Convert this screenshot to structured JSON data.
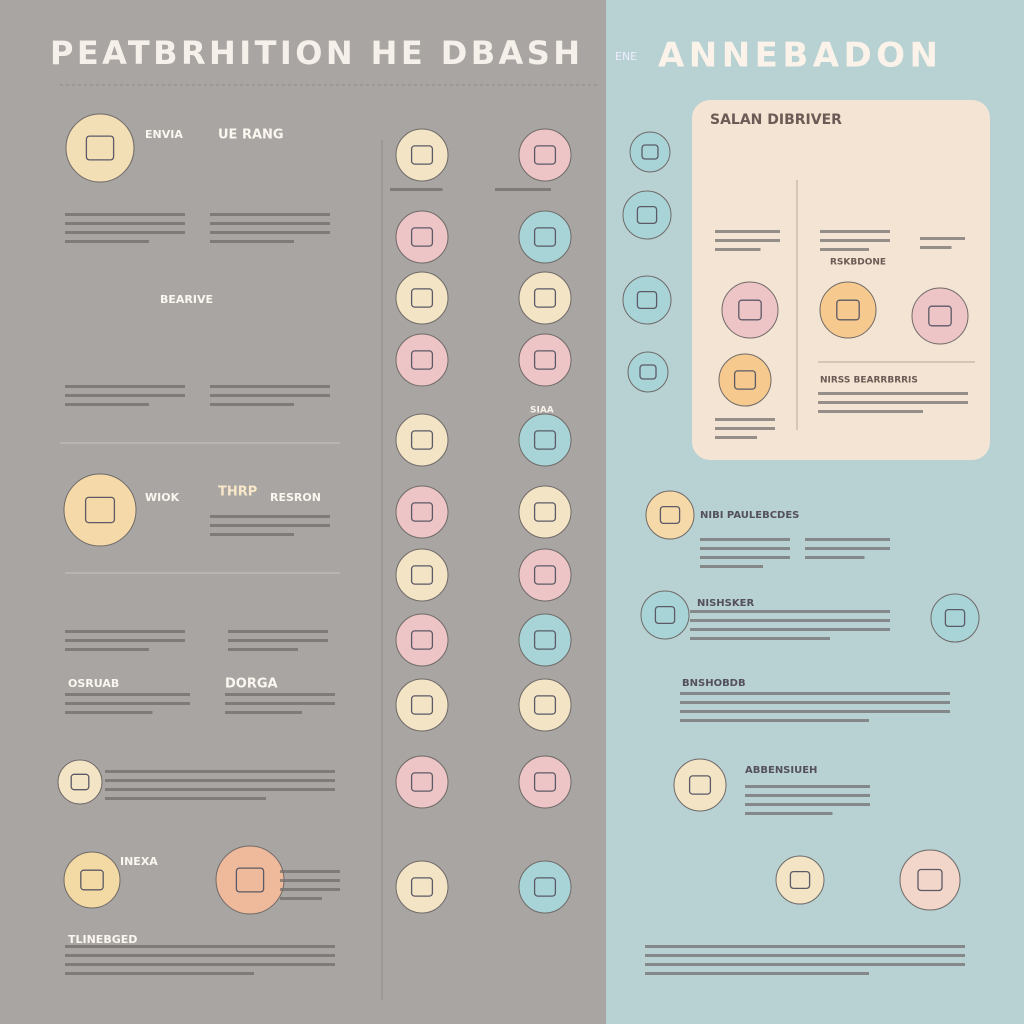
{
  "header": {
    "left_title": "PEATBRHITION HE DBASH",
    "right_title": "ANNEBADON",
    "tag": "ENE"
  },
  "panel": {
    "title": "SALAN DIBRIVER",
    "labels": [
      "RSKBDONE",
      "NIRSS BEARRBRRIS"
    ]
  },
  "left_labels": [
    "ENVIA",
    "UE RANG",
    "BEARIVE",
    "WIOK",
    "THRP",
    "RESRON",
    "OSRUAB",
    "DORGA",
    "INEXA",
    "TLINEBGED"
  ],
  "center_labels": [
    "SIAA"
  ],
  "right_labels": [
    "NIBI PAULEBCDES",
    "NISHSKER",
    "BNSHOBDB",
    "ABBENSIUEH"
  ]
}
